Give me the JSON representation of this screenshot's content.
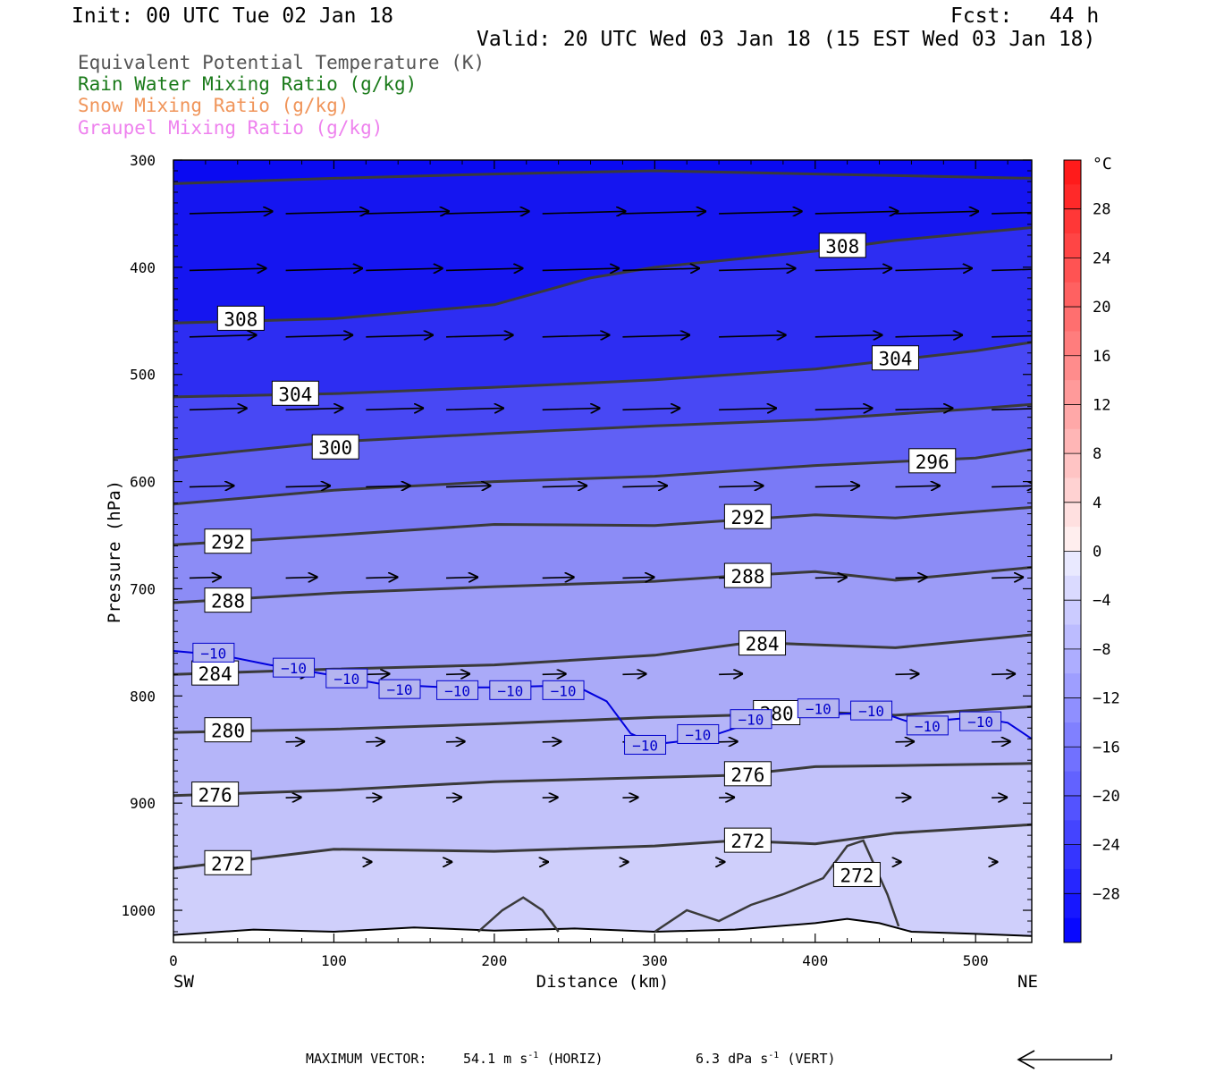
{
  "header": {
    "init": "Init: 00 UTC Tue 02 Jan 18",
    "fcst": "Fcst:   44 h",
    "valid": "Valid: 20 UTC Wed 03 Jan 18 (15 EST Wed 03 Jan 18)"
  },
  "legend": [
    {
      "text": "Equivalent Potential Temperature (K)",
      "color": "#555555"
    },
    {
      "text": "Rain Water Mixing Ratio (g/kg)",
      "color": "#1a7a1a"
    },
    {
      "text": "Snow Mixing Ratio (g/kg)",
      "color": "#f0955a"
    },
    {
      "text": "Graupel Mixing Ratio (g/kg)",
      "color": "#ee82ee"
    }
  ],
  "footer": {
    "max_vector_label": "MAXIMUM VECTOR:",
    "horiz_value": "54.1",
    "horiz_unit": "m s",
    "horiz_exp": "-1",
    "horiz_tag": "(HORIZ)",
    "vert_value": "6.3",
    "vert_unit": "dPa s",
    "vert_exp": "-1",
    "vert_tag": "(VERT)"
  },
  "chart_data": {
    "type": "cross-section",
    "xlabel": "Distance (km)",
    "ylabel": "Pressure (hPa)",
    "x_range": [
      0,
      535
    ],
    "y_range": [
      300,
      1030
    ],
    "x_ticks": [
      0,
      100,
      200,
      300,
      400,
      500
    ],
    "y_ticks": [
      300,
      400,
      500,
      600,
      700,
      800,
      900,
      1000
    ],
    "left_end_label": "SW",
    "right_end_label": "NE",
    "colorbar": {
      "unit": "°C",
      "labels": [
        "28",
        "24",
        "20",
        "16",
        "12",
        "8",
        "4",
        "0",
        "−4",
        "−8",
        "−12",
        "−16",
        "−20",
        "−24",
        "−28"
      ],
      "levels": [
        28,
        24,
        20,
        16,
        12,
        8,
        4,
        0,
        -4,
        -8,
        -12,
        -16,
        -20,
        -24,
        -28
      ],
      "range": [
        -32,
        32
      ]
    },
    "theta_e_contours": [
      {
        "level": 308,
        "points": [
          [
            0,
            452
          ],
          [
            100,
            448
          ],
          [
            200,
            435
          ],
          [
            260,
            410
          ],
          [
            300,
            400
          ],
          [
            400,
            385
          ],
          [
            450,
            375
          ],
          [
            535,
            363
          ]
        ],
        "labels": [
          {
            "x": 42,
            "p": 448,
            "text": "308"
          },
          {
            "x": 417,
            "p": 380,
            "text": "308"
          }
        ]
      },
      {
        "level": 312,
        "points": [
          [
            0,
            322
          ],
          [
            100,
            317
          ],
          [
            200,
            313
          ],
          [
            300,
            310
          ],
          [
            400,
            313
          ],
          [
            535,
            317
          ]
        ],
        "labels": []
      },
      {
        "level": 304,
        "points": [
          [
            0,
            521
          ],
          [
            100,
            518
          ],
          [
            200,
            512
          ],
          [
            260,
            508
          ],
          [
            300,
            505
          ],
          [
            400,
            495
          ],
          [
            500,
            478
          ],
          [
            535,
            470
          ]
        ],
        "labels": [
          {
            "x": 76,
            "p": 518,
            "text": "304"
          },
          {
            "x": 450,
            "p": 485,
            "text": "304"
          }
        ]
      },
      {
        "level": 300,
        "points": [
          [
            0,
            578
          ],
          [
            100,
            563
          ],
          [
            200,
            555
          ],
          [
            300,
            548
          ],
          [
            400,
            542
          ],
          [
            500,
            532
          ],
          [
            535,
            528
          ]
        ],
        "labels": [
          {
            "x": 101,
            "p": 568,
            "text": "300"
          }
        ]
      },
      {
        "level": 296,
        "points": [
          [
            0,
            621
          ],
          [
            100,
            608
          ],
          [
            200,
            600
          ],
          [
            300,
            595
          ],
          [
            400,
            585
          ],
          [
            500,
            578
          ],
          [
            535,
            570
          ]
        ],
        "labels": [
          {
            "x": 473,
            "p": 581,
            "text": "296"
          }
        ]
      },
      {
        "level": 292,
        "points": [
          [
            0,
            659
          ],
          [
            100,
            650
          ],
          [
            200,
            640
          ],
          [
            300,
            641
          ],
          [
            400,
            631
          ],
          [
            450,
            634
          ],
          [
            535,
            624
          ]
        ],
        "labels": [
          {
            "x": 34,
            "p": 656,
            "text": "292"
          },
          {
            "x": 358,
            "p": 633,
            "text": "292"
          }
        ]
      },
      {
        "level": 288,
        "points": [
          [
            0,
            713
          ],
          [
            100,
            704
          ],
          [
            200,
            698
          ],
          [
            300,
            693
          ],
          [
            350,
            688
          ],
          [
            400,
            684
          ],
          [
            450,
            692
          ],
          [
            535,
            680
          ]
        ],
        "labels": [
          {
            "x": 34,
            "p": 711,
            "text": "288"
          },
          {
            "x": 358,
            "p": 688,
            "text": "288"
          }
        ]
      },
      {
        "level": 284,
        "points": [
          [
            0,
            780
          ],
          [
            100,
            775
          ],
          [
            200,
            771
          ],
          [
            300,
            762
          ],
          [
            360,
            750
          ],
          [
            450,
            755
          ],
          [
            535,
            743
          ]
        ],
        "labels": [
          {
            "x": 26,
            "p": 779,
            "text": "284"
          },
          {
            "x": 367,
            "p": 751,
            "text": "284"
          }
        ]
      },
      {
        "level": 280,
        "points": [
          [
            0,
            834
          ],
          [
            100,
            831
          ],
          [
            200,
            826
          ],
          [
            300,
            820
          ],
          [
            350,
            818
          ],
          [
            400,
            815
          ],
          [
            450,
            818
          ],
          [
            535,
            810
          ]
        ],
        "labels": [
          {
            "x": 34,
            "p": 832,
            "text": "280"
          },
          {
            "x": 376,
            "p": 816,
            "text": "280"
          }
        ]
      },
      {
        "level": 276,
        "points": [
          [
            0,
            893
          ],
          [
            100,
            888
          ],
          [
            200,
            880
          ],
          [
            300,
            876
          ],
          [
            350,
            874
          ],
          [
            400,
            866
          ],
          [
            450,
            865
          ],
          [
            535,
            863
          ]
        ],
        "labels": [
          {
            "x": 26,
            "p": 892,
            "text": "276"
          },
          {
            "x": 358,
            "p": 873,
            "text": "276"
          }
        ]
      },
      {
        "level": 272,
        "points": [
          [
            0,
            961
          ],
          [
            100,
            943
          ],
          [
            200,
            945
          ],
          [
            300,
            940
          ],
          [
            350,
            935
          ],
          [
            400,
            938
          ],
          [
            450,
            928
          ],
          [
            535,
            920
          ]
        ],
        "labels": [
          {
            "x": 34,
            "p": 956,
            "text": "272"
          },
          {
            "x": 358,
            "p": 935,
            "text": "272"
          },
          {
            "x": 426,
            "p": 967,
            "text": "272"
          }
        ]
      }
    ],
    "minus10_isotherm": {
      "level": -10,
      "points": [
        [
          0,
          758
        ],
        [
          30,
          762
        ],
        [
          60,
          771
        ],
        [
          100,
          781
        ],
        [
          130,
          789
        ],
        [
          170,
          792
        ],
        [
          200,
          792
        ],
        [
          250,
          790
        ],
        [
          270,
          805
        ],
        [
          285,
          835
        ],
        [
          300,
          845
        ],
        [
          330,
          840
        ],
        [
          360,
          825
        ],
        [
          400,
          818
        ],
        [
          440,
          815
        ],
        [
          460,
          825
        ],
        [
          500,
          820
        ],
        [
          520,
          825
        ],
        [
          535,
          840
        ]
      ],
      "labels": [
        {
          "x": 25,
          "p": 760
        },
        {
          "x": 75,
          "p": 774
        },
        {
          "x": 108,
          "p": 784
        },
        {
          "x": 141,
          "p": 794
        },
        {
          "x": 177,
          "p": 795
        },
        {
          "x": 210,
          "p": 795
        },
        {
          "x": 243,
          "p": 795
        },
        {
          "x": 294,
          "p": 846
        },
        {
          "x": 327,
          "p": 836
        },
        {
          "x": 360,
          "p": 822
        },
        {
          "x": 402,
          "p": 812
        },
        {
          "x": 435,
          "p": 814
        },
        {
          "x": 470,
          "p": 828
        },
        {
          "x": 503,
          "p": 824
        }
      ]
    },
    "wind_vectors": [
      {
        "p": 350,
        "x": [
          10,
          70,
          120,
          170,
          230,
          280,
          340,
          400,
          450,
          510
        ],
        "len": 52
      },
      {
        "p": 403,
        "x": [
          10,
          70,
          120,
          170,
          230,
          280,
          340,
          400,
          450,
          510
        ],
        "len": 48
      },
      {
        "p": 465,
        "x": [
          10,
          70,
          120,
          170,
          230,
          280,
          340,
          400,
          450,
          510
        ],
        "len": 42
      },
      {
        "p": 533,
        "x": [
          10,
          70,
          120,
          170,
          230,
          280,
          340,
          400,
          450,
          510
        ],
        "len": 36
      },
      {
        "p": 605,
        "x": [
          10,
          70,
          120,
          170,
          230,
          280,
          340,
          400,
          450,
          510
        ],
        "len": 28
      },
      {
        "p": 690,
        "x": [
          10,
          70,
          120,
          170,
          230,
          280,
          340,
          400,
          450,
          510
        ],
        "len": 20
      },
      {
        "p": 780,
        "x": [
          70,
          120,
          170,
          230,
          280,
          340,
          450,
          510
        ],
        "len": 15
      },
      {
        "p": 843,
        "x": [
          70,
          120,
          170,
          230,
          280,
          340,
          450,
          510
        ],
        "len": 12
      },
      {
        "p": 895,
        "x": [
          70,
          120,
          170,
          230,
          280,
          340,
          450,
          510
        ],
        "len": 10
      },
      {
        "p": 955,
        "x": [
          120,
          170,
          230,
          280,
          340,
          450,
          510
        ],
        "len": 4
      }
    ]
  }
}
